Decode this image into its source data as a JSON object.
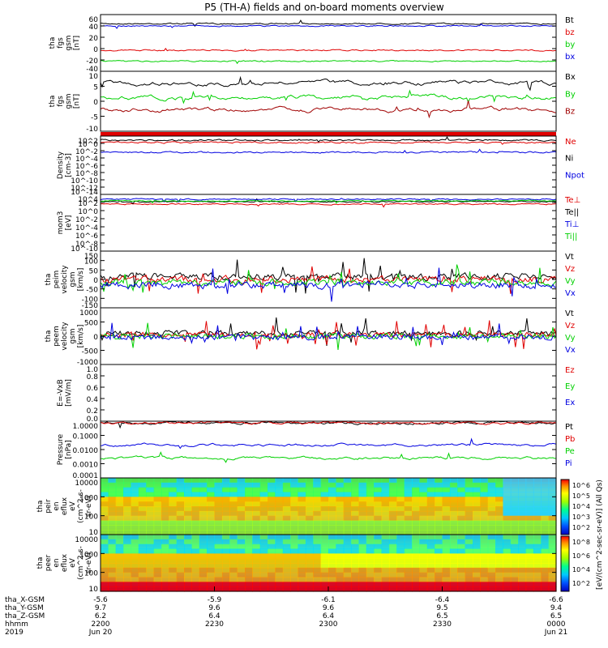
{
  "title": "P5 (TH-A) fields and on-board moments overview",
  "colors": {
    "black": "#000000",
    "red": "#e00000",
    "green": "#00d000",
    "blue": "#0000e0",
    "darkred": "#a00000"
  },
  "chart_data": [
    {
      "type": "line",
      "ylabel": [
        "tha",
        "fgs",
        "gsm",
        "[nT]"
      ],
      "ylim": [
        -40,
        60
      ],
      "yticks": [
        "60",
        "40",
        "20",
        "0",
        "-20",
        "-40"
      ],
      "series": [
        {
          "name": "Bt",
          "color": "#000000",
          "level": 44
        },
        {
          "name": "bz",
          "color": "#e00000",
          "level": -3
        },
        {
          "name": "by",
          "color": "#00d000",
          "level": -22
        },
        {
          "name": "bx",
          "color": "#0000e0",
          "level": 40
        }
      ]
    },
    {
      "type": "line",
      "ylabel": [
        "tha",
        "fgs",
        "gsm",
        "[nT]"
      ],
      "ylim": [
        -15,
        10
      ],
      "yticks": [
        "10",
        "5",
        "0",
        "-5",
        "-10"
      ],
      "series": [
        {
          "name": "Bx",
          "color": "#000000",
          "level": 5
        },
        {
          "name": "By",
          "color": "#00d000",
          "level": -1
        },
        {
          "name": "Bz",
          "color": "#a00000",
          "level": -6
        }
      ]
    },
    {
      "type": "line",
      "ylabel": [
        "Density",
        "[cm-3]"
      ],
      "ylim": [
        "10^-14",
        "10^2"
      ],
      "yticks": [
        "10^2",
        "10^0",
        "10^-2",
        "10^-4",
        "10^-6",
        "10^-8",
        "10^-10",
        "10^-12",
        "10^-14"
      ],
      "series": [
        {
          "name": "Ne",
          "color": "#e00000"
        },
        {
          "name": "Ni",
          "color": "#000000"
        },
        {
          "name": "Npot",
          "color": "#0000e0"
        }
      ]
    },
    {
      "type": "line",
      "ylabel": [
        "mom3",
        "[eV]"
      ],
      "ylim": [
        "10^-10",
        "10^4"
      ],
      "yticks": [
        "10^4",
        "10^2",
        "10^0",
        "10^-2",
        "10^-4",
        "10^-6",
        "10^-8",
        "10^-10"
      ],
      "series": [
        {
          "name": "Te⊥",
          "color": "#e00000"
        },
        {
          "name": "Te||",
          "color": "#000000"
        },
        {
          "name": "Ti⊥",
          "color": "#0000e0"
        },
        {
          "name": "Ti||",
          "color": "#00d000"
        }
      ]
    },
    {
      "type": "line",
      "ylabel": [
        "tha",
        "peim",
        "velocity",
        "gsm",
        "[km/s]"
      ],
      "ylim": [
        -150,
        150
      ],
      "yticks": [
        "150",
        "100",
        "50",
        "0",
        "-50",
        "-100",
        "-150"
      ],
      "series": [
        {
          "name": "Vt",
          "color": "#000000"
        },
        {
          "name": "Vz",
          "color": "#e00000"
        },
        {
          "name": "Vy",
          "color": "#00d000"
        },
        {
          "name": "Vx",
          "color": "#0000e0"
        }
      ]
    },
    {
      "type": "line",
      "ylabel": [
        "tha",
        "peem",
        "velocity",
        "gsm",
        "[km/s]"
      ],
      "ylim": [
        -1000,
        1000
      ],
      "yticks": [
        "1000",
        "500",
        "0",
        "-500",
        "-1000"
      ],
      "series": [
        {
          "name": "Vt",
          "color": "#000000"
        },
        {
          "name": "Vz",
          "color": "#e00000"
        },
        {
          "name": "Vy",
          "color": "#00d000"
        },
        {
          "name": "Vx",
          "color": "#0000e0"
        }
      ]
    },
    {
      "type": "line",
      "ylabel": [
        "E=-VxB",
        "[mV/m]"
      ],
      "ylim": [
        0,
        1
      ],
      "yticks": [
        "1.0",
        "0.8",
        "0.6",
        "0.4",
        "0.2",
        "0.0"
      ],
      "series": [
        {
          "name": "Ez",
          "color": "#e00000"
        },
        {
          "name": "Ey",
          "color": "#00d000"
        },
        {
          "name": "Ex",
          "color": "#0000e0"
        }
      ]
    },
    {
      "type": "line",
      "ylabel": [
        "Pressure",
        "[nPa]"
      ],
      "ylim": [
        0.0001,
        1
      ],
      "yticks": [
        "1.0000",
        "0.1000",
        "0.0100",
        "0.0010",
        "0.0001"
      ],
      "series": [
        {
          "name": "Pt",
          "color": "#000000"
        },
        {
          "name": "Pb",
          "color": "#e00000"
        },
        {
          "name": "Pe",
          "color": "#00d000"
        },
        {
          "name": "Pi",
          "color": "#0000e0"
        }
      ]
    },
    {
      "type": "heatmap",
      "ylabel": [
        "tha",
        "peir",
        "en",
        "eflux",
        "eV",
        "(cm^2-s-",
        "sr-eV)"
      ],
      "ylim": [
        5,
        20000
      ],
      "yticks": [
        "10000",
        "1000",
        "100",
        "10"
      ]
    },
    {
      "type": "heatmap",
      "ylabel": [
        "tha",
        "peer",
        "en",
        "eflux",
        "eV",
        "(cm^2-s-",
        "sr-eV)"
      ],
      "ylim": [
        5,
        20000
      ],
      "yticks": [
        "10000",
        "1000",
        "100",
        "10"
      ]
    }
  ],
  "colorbar": {
    "label": "[eV/(cm^2-sec-sr-eV)] (All Qs)",
    "ticks_top": [
      "10^6",
      "10^5",
      "10^4",
      "10^3",
      "10^2"
    ],
    "ticks_bottom": [
      "10^8",
      "10^6",
      "10^4",
      "10^2"
    ]
  },
  "xaxis": {
    "row_labels": [
      "tha_X-GSM",
      "tha_Y-GSM",
      "tha_Z-GSM",
      "hhmm",
      "2019"
    ],
    "ticks": [
      {
        "t": 0,
        "x": "-5.6",
        "y": "9.7",
        "z": "6.2",
        "hhmm": "2200",
        "date": "Jun 20"
      },
      {
        "t": 30,
        "x": "-5.9",
        "y": "9.6",
        "z": "6.4",
        "hhmm": "2230",
        "date": ""
      },
      {
        "t": 60,
        "x": "-6.1",
        "y": "9.6",
        "z": "6.4",
        "hhmm": "2300",
        "date": ""
      },
      {
        "t": 90,
        "x": "-6.4",
        "y": "9.5",
        "z": "6.5",
        "hhmm": "2330",
        "date": ""
      },
      {
        "t": 120,
        "x": "-6.6",
        "y": "9.4",
        "z": "6.5",
        "hhmm": "0000",
        "date": "Jun 21"
      }
    ]
  }
}
